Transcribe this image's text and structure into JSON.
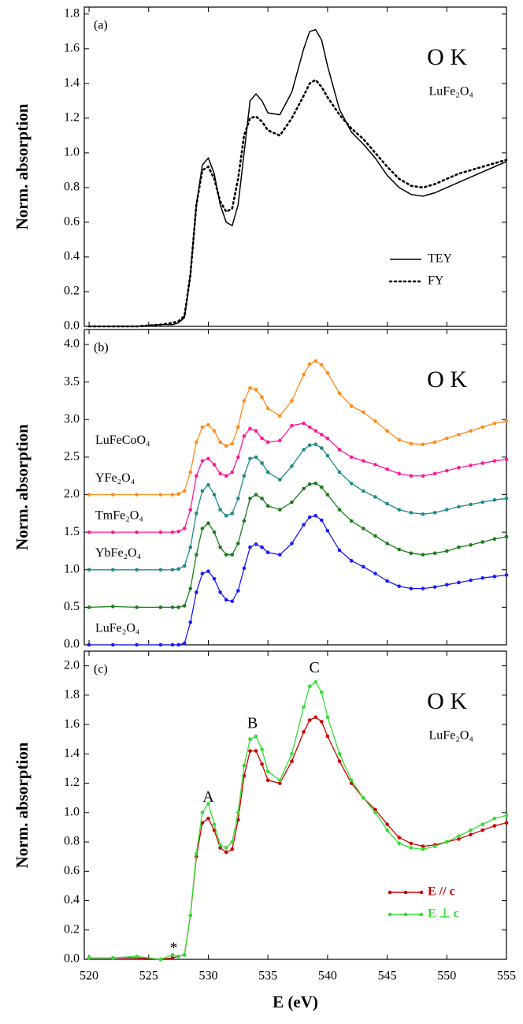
{
  "chart_data": [
    {
      "type": "line",
      "panel_label": "(a)",
      "heading": "O K",
      "sample": "LuFe₂O₄",
      "ylabel": "Norm. absorption",
      "xlim": [
        519.6,
        555
      ],
      "ylim": [
        0,
        1.84
      ],
      "yticks": [
        {
          "value": 0,
          "label": "0.0"
        },
        0.2,
        0.4,
        0.6,
        0.8,
        {
          "value": 1,
          "label": "1.0"
        },
        1.2,
        1.4,
        1.6,
        1.8
      ],
      "legend": "lower right",
      "markers": false,
      "x": [
        520,
        522,
        524,
        526,
        527,
        527.5,
        528,
        528.5,
        529,
        529.5,
        530,
        530.5,
        531,
        531.5,
        532,
        532.5,
        533,
        533.5,
        534,
        534.5,
        535,
        536,
        537,
        538,
        538.5,
        539,
        539.5,
        540,
        541,
        542,
        543,
        544,
        545,
        546,
        547,
        548,
        549,
        550,
        551,
        552,
        553,
        554,
        555
      ],
      "series": [
        {
          "name": "TEY",
          "color": "#000000",
          "linestyle": "solid",
          "values": [
            0,
            0,
            0,
            0.01,
            0.01,
            0.02,
            0.05,
            0.3,
            0.7,
            0.93,
            0.97,
            0.88,
            0.7,
            0.6,
            0.58,
            0.7,
            1.0,
            1.3,
            1.34,
            1.3,
            1.23,
            1.22,
            1.35,
            1.6,
            1.7,
            1.71,
            1.65,
            1.5,
            1.25,
            1.12,
            1.05,
            0.97,
            0.87,
            0.8,
            0.76,
            0.75,
            0.77,
            0.8,
            0.83,
            0.86,
            0.89,
            0.92,
            0.95
          ]
        },
        {
          "name": "FY",
          "color": "#000000",
          "linestyle": "dotted",
          "values": [
            0,
            0,
            0,
            0.01,
            0.02,
            0.03,
            0.06,
            0.3,
            0.7,
            0.9,
            0.92,
            0.85,
            0.72,
            0.66,
            0.68,
            0.85,
            1.1,
            1.2,
            1.21,
            1.18,
            1.13,
            1.1,
            1.2,
            1.33,
            1.4,
            1.42,
            1.38,
            1.32,
            1.22,
            1.14,
            1.08,
            1.0,
            0.92,
            0.85,
            0.81,
            0.8,
            0.82,
            0.85,
            0.88,
            0.9,
            0.92,
            0.94,
            0.96
          ]
        }
      ]
    },
    {
      "type": "line",
      "panel_label": "(b)",
      "heading": "O K",
      "ylabel": "Norm. absorption",
      "xlim": [
        519.6,
        555
      ],
      "ylim": [
        0,
        4.2
      ],
      "yticks": [
        {
          "value": 0,
          "label": "0.0"
        },
        0.5,
        {
          "value": 1,
          "label": "1.0"
        },
        1.5,
        {
          "value": 2,
          "label": "2.0"
        },
        2.5,
        {
          "value": 3,
          "label": "3.0"
        },
        3.5,
        {
          "value": 4,
          "label": "4.0"
        }
      ],
      "legend": "left",
      "markers": true,
      "x": [
        520,
        522,
        524,
        526,
        527,
        527.5,
        528,
        528.5,
        529,
        529.5,
        530,
        530.5,
        531,
        531.5,
        532,
        532.5,
        533,
        533.5,
        534,
        534.5,
        535,
        536,
        537,
        538,
        538.5,
        539,
        539.5,
        540,
        541,
        542,
        543,
        544,
        545,
        546,
        547,
        548,
        549,
        550,
        551,
        552,
        553,
        554,
        555
      ],
      "series": [
        {
          "name": "LuFe₂O₄",
          "color": "#1a1aff",
          "linestyle": "solid",
          "values": [
            0,
            0,
            0,
            0,
            0,
            0,
            0.02,
            0.3,
            0.7,
            0.95,
            0.98,
            0.88,
            0.7,
            0.6,
            0.58,
            0.72,
            1.02,
            1.3,
            1.34,
            1.3,
            1.23,
            1.2,
            1.35,
            1.6,
            1.7,
            1.72,
            1.66,
            1.52,
            1.26,
            1.12,
            1.04,
            0.95,
            0.85,
            0.78,
            0.75,
            0.75,
            0.77,
            0.8,
            0.83,
            0.86,
            0.89,
            0.91,
            0.93
          ]
        },
        {
          "name": "YbFe₂O₄",
          "color": "#1a7d1a",
          "linestyle": "solid",
          "values": [
            0.5,
            0.51,
            0.5,
            0.5,
            0.5,
            0.5,
            0.52,
            0.75,
            1.2,
            1.55,
            1.62,
            1.5,
            1.3,
            1.2,
            1.2,
            1.35,
            1.65,
            1.95,
            2.0,
            1.95,
            1.85,
            1.8,
            1.9,
            2.08,
            2.14,
            2.15,
            2.1,
            2.0,
            1.8,
            1.65,
            1.55,
            1.45,
            1.35,
            1.27,
            1.22,
            1.2,
            1.22,
            1.25,
            1.3,
            1.33,
            1.37,
            1.41,
            1.44
          ]
        },
        {
          "name": "TmFe₂O₄",
          "color": "#1f8a8a",
          "linestyle": "solid",
          "values": [
            1.0,
            1.0,
            1.0,
            1.0,
            1.0,
            1.01,
            1.05,
            1.3,
            1.75,
            2.05,
            2.13,
            2.0,
            1.8,
            1.72,
            1.75,
            1.95,
            2.25,
            2.48,
            2.5,
            2.42,
            2.3,
            2.2,
            2.38,
            2.6,
            2.66,
            2.67,
            2.62,
            2.52,
            2.3,
            2.15,
            2.05,
            1.97,
            1.88,
            1.8,
            1.76,
            1.74,
            1.76,
            1.8,
            1.84,
            1.87,
            1.9,
            1.93,
            1.95
          ]
        },
        {
          "name": "YFe₂O₄",
          "color": "#ff1a9a",
          "linestyle": "solid",
          "values": [
            1.5,
            1.5,
            1.5,
            1.5,
            1.5,
            1.51,
            1.55,
            1.8,
            2.25,
            2.45,
            2.48,
            2.4,
            2.28,
            2.25,
            2.3,
            2.5,
            2.78,
            2.88,
            2.85,
            2.75,
            2.7,
            2.72,
            2.92,
            2.95,
            2.9,
            2.85,
            2.8,
            2.75,
            2.6,
            2.5,
            2.45,
            2.4,
            2.34,
            2.28,
            2.25,
            2.25,
            2.28,
            2.32,
            2.36,
            2.39,
            2.42,
            2.45,
            2.47
          ]
        },
        {
          "name": "LuFeCoO₄",
          "color": "#ff8c1a",
          "linestyle": "solid",
          "values": [
            2.0,
            2.0,
            2.0,
            2.0,
            2.0,
            2.01,
            2.05,
            2.3,
            2.7,
            2.9,
            2.93,
            2.85,
            2.7,
            2.65,
            2.68,
            2.9,
            3.25,
            3.42,
            3.4,
            3.3,
            3.15,
            3.05,
            3.25,
            3.6,
            3.74,
            3.78,
            3.73,
            3.62,
            3.35,
            3.18,
            3.1,
            2.98,
            2.85,
            2.73,
            2.68,
            2.67,
            2.7,
            2.75,
            2.8,
            2.85,
            2.9,
            2.95,
            2.98
          ]
        }
      ]
    },
    {
      "type": "line",
      "panel_label": "(c)",
      "heading": "O K",
      "sample": "LuFe₂O₄",
      "ylabel": "Norm. absorption",
      "xlabel": "E (eV)",
      "xlim": [
        519.6,
        555
      ],
      "ylim": [
        0,
        2.1
      ],
      "xticks": [
        520,
        525,
        530,
        535,
        540,
        545,
        550,
        555
      ],
      "yticks": [
        {
          "value": 0,
          "label": "0.0"
        },
        0.2,
        0.4,
        0.6,
        0.8,
        {
          "value": 1,
          "label": "1.0"
        },
        1.2,
        1.4,
        1.6,
        1.8,
        {
          "value": 2,
          "label": "2.0"
        }
      ],
      "legend": "lower right",
      "markers": true,
      "annotations": [
        {
          "text": "A",
          "x": 530,
          "y": 1.1
        },
        {
          "text": "B",
          "x": 533.7,
          "y": 1.6
        },
        {
          "text": "C",
          "x": 538.9,
          "y": 1.98
        },
        {
          "text": "*",
          "x": 527.1,
          "y": 0.07
        }
      ],
      "x": [
        520,
        522,
        524,
        526,
        527,
        527.5,
        528,
        528.5,
        529,
        529.5,
        530,
        530.5,
        531,
        531.5,
        532,
        532.5,
        533,
        533.5,
        534,
        534.5,
        535,
        536,
        537,
        538,
        538.5,
        539,
        539.5,
        540,
        541,
        542,
        543,
        544,
        545,
        546,
        547,
        548,
        549,
        550,
        551,
        552,
        553,
        554,
        555
      ],
      "series": [
        {
          "name": "E // c",
          "color": "#cc0000",
          "linestyle": "solid",
          "values": [
            0.01,
            0.01,
            0.01,
            0,
            0.01,
            0.02,
            0.03,
            0.3,
            0.7,
            0.93,
            0.96,
            0.88,
            0.76,
            0.73,
            0.75,
            0.95,
            1.25,
            1.42,
            1.42,
            1.33,
            1.22,
            1.2,
            1.35,
            1.55,
            1.63,
            1.65,
            1.62,
            1.52,
            1.35,
            1.2,
            1.1,
            1.02,
            0.92,
            0.83,
            0.79,
            0.77,
            0.78,
            0.8,
            0.82,
            0.85,
            0.88,
            0.91,
            0.93
          ]
        },
        {
          "name": "E ⊥ c",
          "color": "#33dd33",
          "linestyle": "solid",
          "values": [
            0.01,
            0.01,
            0.02,
            0,
            0.03,
            0.02,
            0.03,
            0.3,
            0.72,
            1.0,
            1.06,
            0.92,
            0.78,
            0.76,
            0.8,
            1.0,
            1.32,
            1.5,
            1.52,
            1.43,
            1.28,
            1.22,
            1.4,
            1.72,
            1.86,
            1.89,
            1.82,
            1.65,
            1.4,
            1.22,
            1.1,
            1.0,
            0.88,
            0.79,
            0.76,
            0.75,
            0.77,
            0.8,
            0.84,
            0.88,
            0.92,
            0.96,
            0.98
          ]
        }
      ]
    }
  ]
}
